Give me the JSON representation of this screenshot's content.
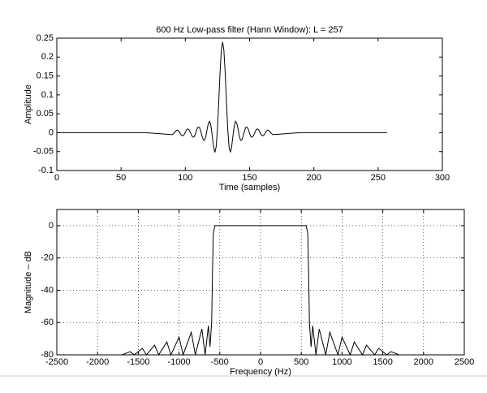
{
  "chart_data": [
    {
      "type": "line",
      "title": "600 Hz Low-pass filter (Hann Window): L = 257",
      "x_label": "Time (samples)",
      "y_label": "Amplitude",
      "color": "#000000",
      "grid": false,
      "xlim": [
        0,
        300
      ],
      "xticks": [
        0,
        50,
        100,
        150,
        200,
        250,
        300
      ],
      "ylim": [
        -0.1,
        0.25
      ],
      "yticks": [
        -0.1,
        -0.05,
        0,
        0.05,
        0.1,
        0.15,
        0.2,
        0.25
      ],
      "x": [
        1,
        39,
        69,
        89,
        90,
        91,
        92,
        93,
        94,
        95,
        96,
        97,
        98,
        99,
        100,
        101,
        102,
        103,
        104,
        105,
        106,
        107,
        108,
        109,
        110,
        111,
        112,
        113,
        114,
        115,
        116,
        117,
        118,
        119,
        120,
        121,
        122,
        123,
        124,
        125,
        126,
        127,
        128,
        129,
        130,
        131,
        132,
        133,
        134,
        135,
        136,
        137,
        138,
        139,
        140,
        141,
        142,
        143,
        144,
        145,
        146,
        147,
        148,
        149,
        150,
        151,
        152,
        153,
        154,
        155,
        156,
        157,
        158,
        159,
        160,
        161,
        162,
        163,
        164,
        165,
        166,
        167,
        168,
        169,
        189,
        219,
        257
      ],
      "values": [
        0,
        0,
        0,
        -0.005,
        -0.005,
        -0.002,
        0.002,
        0.006,
        0.007,
        0.004,
        -0.002,
        -0.007,
        -0.008,
        -0.005,
        0.001,
        0.008,
        0.01,
        0.007,
        0,
        -0.008,
        -0.012,
        -0.01,
        -0.002,
        0.009,
        0.015,
        0.014,
        0.004,
        -0.009,
        -0.019,
        -0.02,
        -0.009,
        0.01,
        0.026,
        0.03,
        0.017,
        -0.01,
        -0.038,
        -0.052,
        -0.037,
        0.01,
        0.082,
        0.159,
        0.218,
        0.24,
        0.218,
        0.159,
        0.082,
        0.01,
        -0.037,
        -0.052,
        -0.038,
        -0.01,
        0.017,
        0.03,
        0.026,
        0.01,
        -0.009,
        -0.02,
        -0.019,
        -0.009,
        0.004,
        0.014,
        0.015,
        0.009,
        -0.002,
        -0.01,
        -0.012,
        -0.008,
        0,
        0.007,
        0.01,
        0.008,
        0.001,
        -0.005,
        -0.008,
        -0.007,
        -0.002,
        0.004,
        0.007,
        0.006,
        0.002,
        -0.002,
        -0.005,
        -0.005,
        0,
        0,
        0
      ]
    },
    {
      "type": "line",
      "x_label": "Frequency (Hz)",
      "y_label": "Magnitude – dB",
      "color": "#000000",
      "grid": true,
      "xlim": [
        -2500,
        2500
      ],
      "xticks": [
        -2500,
        -2000,
        -1500,
        -1000,
        -500,
        0,
        500,
        1000,
        1500,
        2000,
        2500
      ],
      "ylim": [
        -80,
        10
      ],
      "yticks": [
        -80,
        -60,
        -40,
        -20,
        0
      ],
      "x": [
        -2300,
        -1700,
        -1600,
        -1550,
        -1450,
        -1400,
        -1300,
        -1250,
        -1150,
        -1100,
        -1000,
        -950,
        -850,
        -800,
        -720,
        -680,
        -640,
        -620,
        -600,
        -590,
        -580,
        -560,
        560,
        580,
        590,
        600,
        620,
        640,
        680,
        720,
        800,
        850,
        950,
        1000,
        1100,
        1150,
        1250,
        1300,
        1400,
        1450,
        1550,
        1600,
        1700,
        2300
      ],
      "values": [
        -80,
        -80,
        -78,
        -80,
        -76,
        -80,
        -74,
        -80,
        -72,
        -80,
        -69,
        -80,
        -66,
        -80,
        -64,
        -80,
        -62,
        -75,
        -60,
        -30,
        -5,
        0,
        0,
        -5,
        -30,
        -60,
        -75,
        -62,
        -80,
        -64,
        -80,
        -66,
        -80,
        -69,
        -80,
        -72,
        -80,
        -74,
        -80,
        -76,
        -80,
        -78,
        -80,
        -80
      ]
    }
  ]
}
